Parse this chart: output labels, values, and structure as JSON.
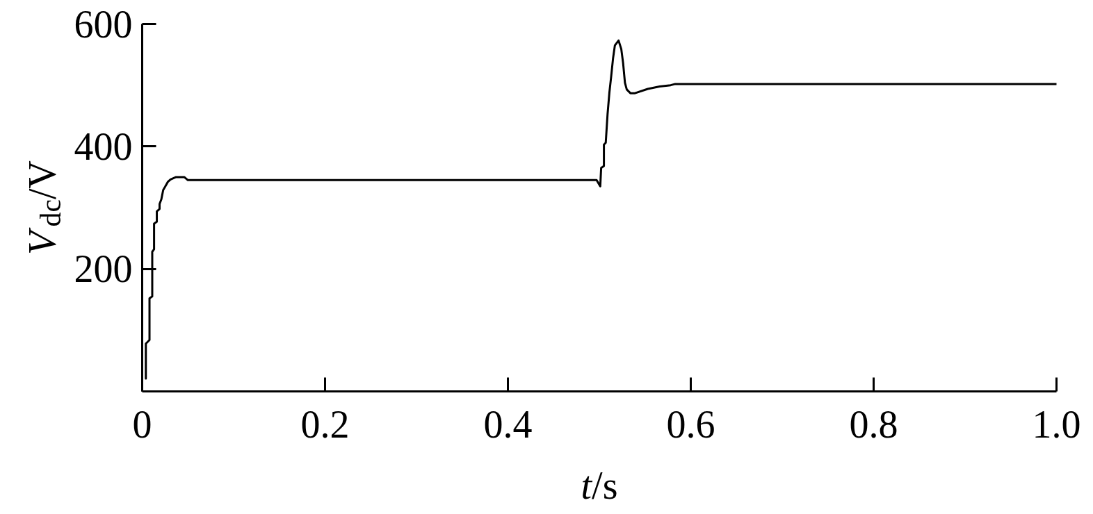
{
  "chart_data": {
    "type": "line",
    "xlabel": "t/s",
    "ylabel": "V$_{dc}$/V",
    "x": [
      0.004,
      0.004,
      0.008,
      0.008,
      0.011,
      0.011,
      0.013,
      0.013,
      0.016,
      0.016,
      0.019,
      0.019,
      0.021,
      0.023,
      0.025,
      0.028,
      0.031,
      0.037,
      0.046,
      0.05,
      0.497,
      0.501,
      0.502,
      0.505,
      0.505,
      0.507,
      0.509,
      0.511,
      0.513,
      0.515,
      0.517,
      0.521,
      0.524,
      0.526,
      0.528,
      0.53,
      0.534,
      0.539,
      0.553,
      0.566,
      0.578,
      0.583,
      1.0
    ],
    "values": [
      21,
      78,
      84,
      152,
      155,
      228,
      232,
      274,
      277,
      294,
      298,
      306,
      314,
      329,
      334,
      342,
      346,
      350,
      350,
      345,
      345,
      335,
      365,
      368,
      403,
      406,
      453,
      488,
      515,
      544,
      565,
      573,
      559,
      536,
      504,
      493,
      487,
      487,
      494,
      498,
      500,
      502,
      502
    ],
    "color": "#000000",
    "line_style": "solid",
    "grid": false,
    "xlim": [
      0,
      1
    ],
    "ylim": [
      0,
      600
    ],
    "xticks": [
      0,
      0.2,
      0.4,
      0.6,
      0.8,
      {
        "value": 1,
        "label": "1.0"
      }
    ],
    "yticks": [
      200,
      400,
      600
    ]
  }
}
